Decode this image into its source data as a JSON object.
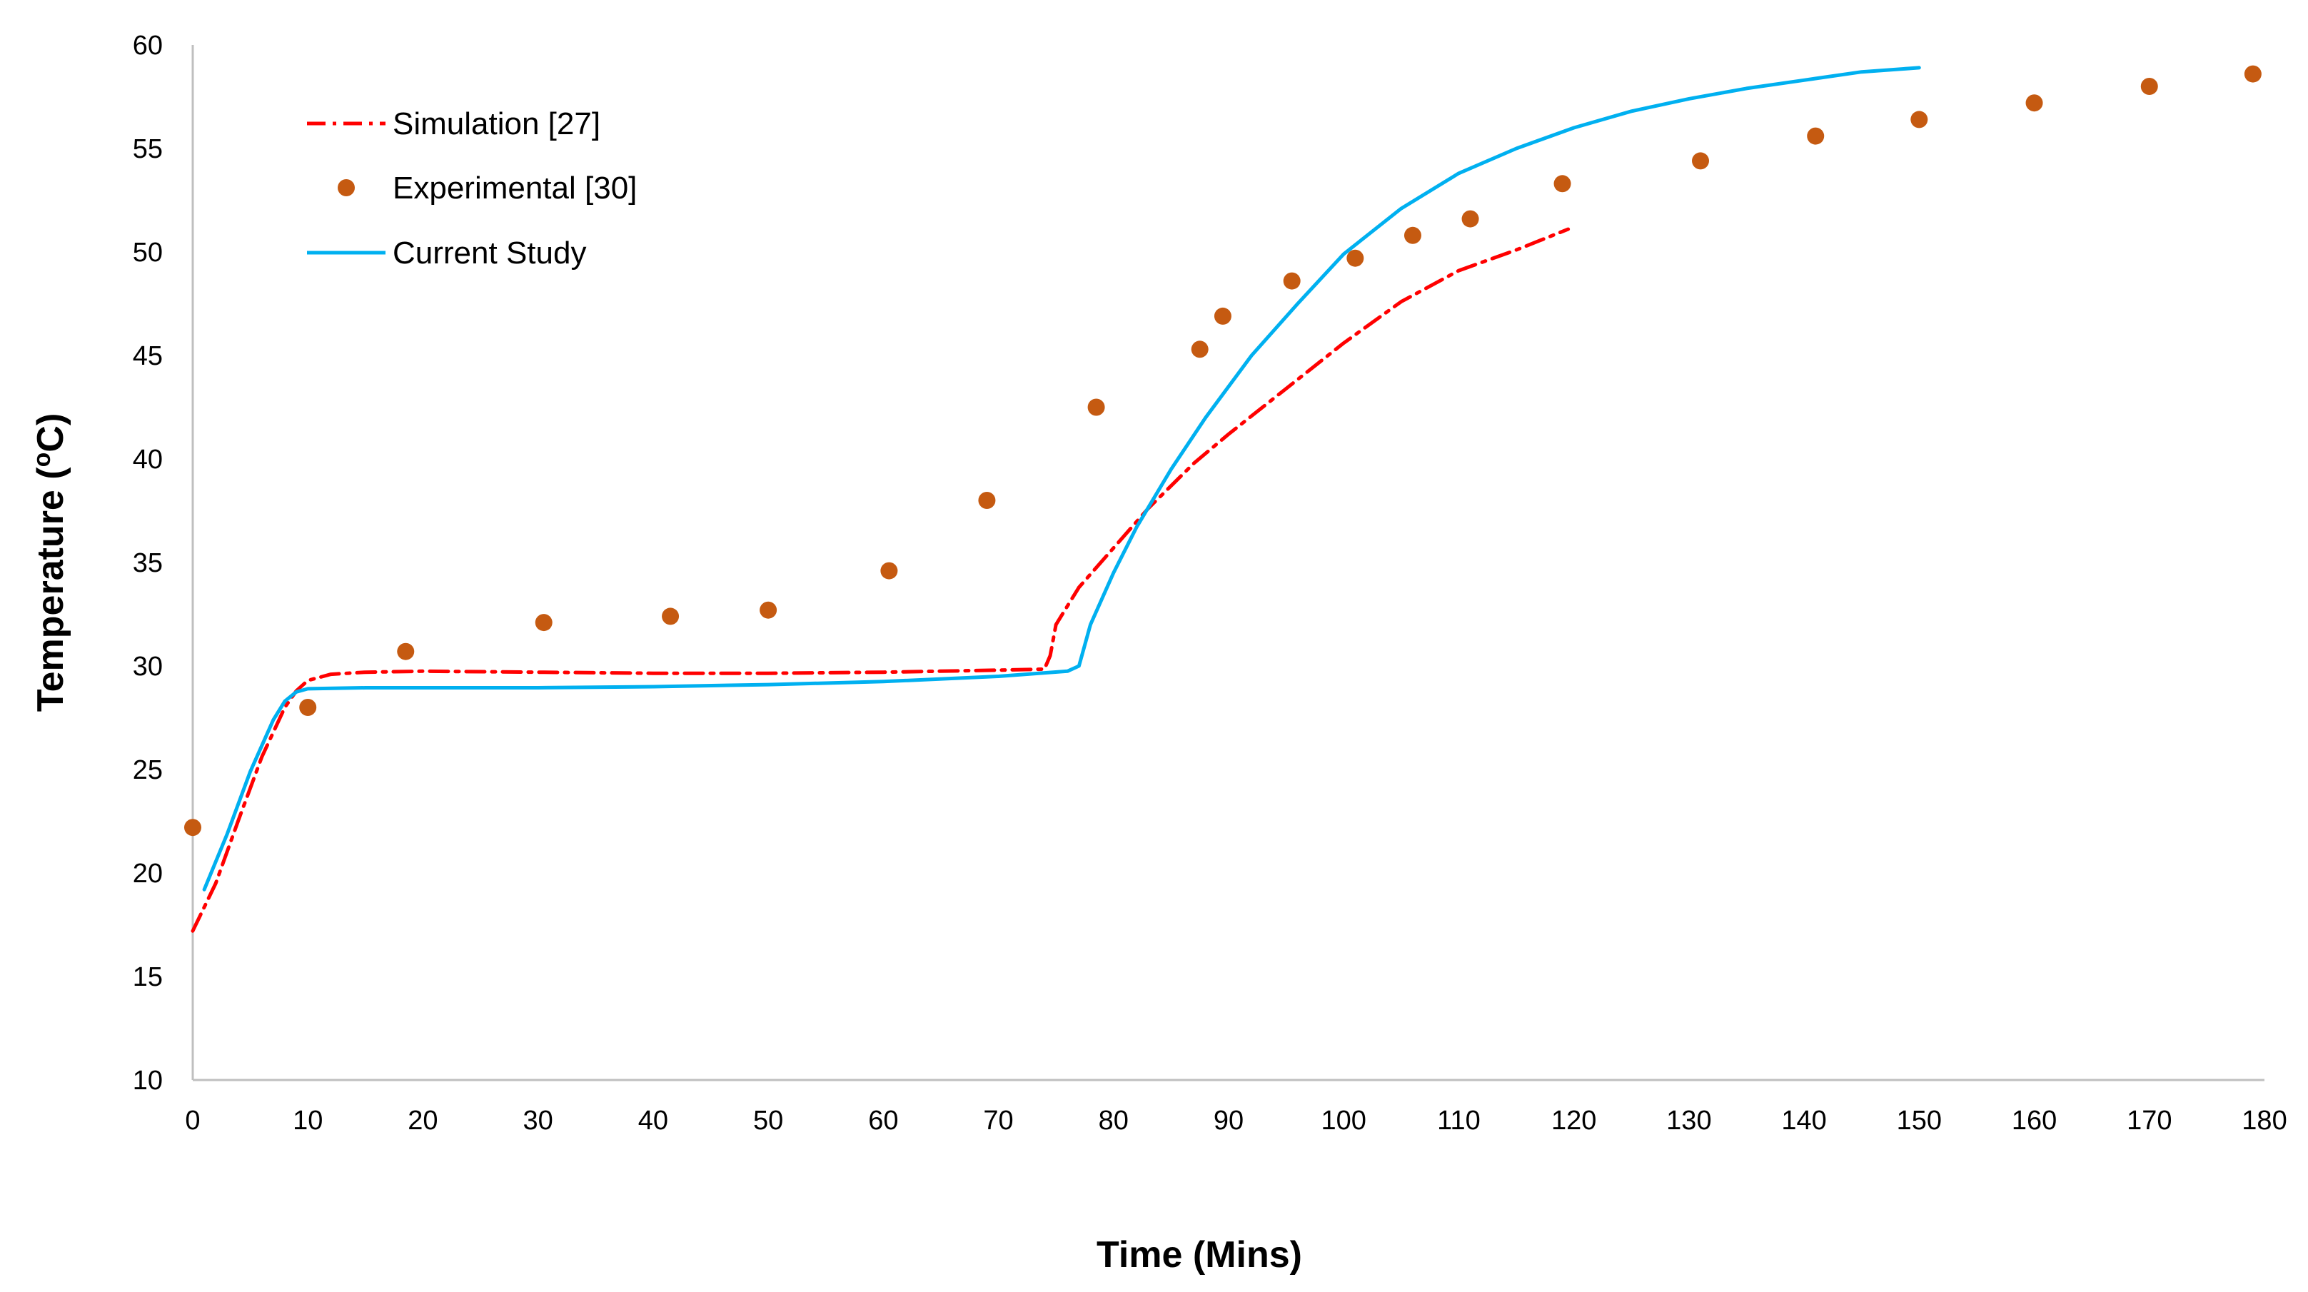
{
  "chart_data": {
    "type": "scatter",
    "title": "",
    "xlabel": "Time (Mins)",
    "ylabel_main": "Temperature (",
    "ylabel_sup": "o",
    "ylabel_end": "C)",
    "xlim": [
      0,
      180
    ],
    "ylim": [
      10,
      60
    ],
    "x_ticks": [
      0,
      10,
      20,
      30,
      40,
      50,
      60,
      70,
      80,
      90,
      100,
      110,
      120,
      130,
      140,
      150,
      160,
      170,
      180
    ],
    "y_ticks": [
      10,
      15,
      20,
      25,
      30,
      35,
      40,
      45,
      50,
      55,
      60
    ],
    "grid": false,
    "legend_position": "top-left",
    "series": [
      {
        "name": "Simulation [27]",
        "kind": "line",
        "style": "dash-dot",
        "color": "#ff0000",
        "points": [
          [
            0,
            17.2
          ],
          [
            2,
            19.5
          ],
          [
            4,
            22.6
          ],
          [
            6,
            25.6
          ],
          [
            8,
            28.0
          ],
          [
            9,
            28.8
          ],
          [
            10,
            29.3
          ],
          [
            12,
            29.6
          ],
          [
            15,
            29.7
          ],
          [
            20,
            29.75
          ],
          [
            30,
            29.7
          ],
          [
            40,
            29.65
          ],
          [
            50,
            29.65
          ],
          [
            60,
            29.7
          ],
          [
            70,
            29.8
          ],
          [
            74,
            29.85
          ],
          [
            74.5,
            30.5
          ],
          [
            75,
            32.0
          ],
          [
            77,
            33.8
          ],
          [
            80,
            35.7
          ],
          [
            83,
            37.6
          ],
          [
            87,
            39.8
          ],
          [
            90,
            41.2
          ],
          [
            95,
            43.4
          ],
          [
            100,
            45.6
          ],
          [
            105,
            47.6
          ],
          [
            110,
            49.1
          ],
          [
            115,
            50.1
          ],
          [
            119.5,
            51.1
          ]
        ]
      },
      {
        "name": "Experimental [30]",
        "kind": "scatter",
        "color": "#c55a11",
        "points": [
          [
            0,
            22.2
          ],
          [
            10,
            28.0
          ],
          [
            18.5,
            30.7
          ],
          [
            30.5,
            32.1
          ],
          [
            41.5,
            32.4
          ],
          [
            50,
            32.7
          ],
          [
            60.5,
            34.6
          ],
          [
            69,
            38.0
          ],
          [
            78.5,
            42.5
          ],
          [
            87.5,
            45.3
          ],
          [
            89.5,
            46.9
          ],
          [
            95.5,
            48.6
          ],
          [
            101,
            49.7
          ],
          [
            106,
            50.8
          ],
          [
            111,
            51.6
          ],
          [
            119,
            53.3
          ],
          [
            131,
            54.4
          ],
          [
            141,
            55.6
          ],
          [
            150,
            56.4
          ],
          [
            160,
            57.2
          ],
          [
            170,
            58.0
          ],
          [
            179,
            58.6
          ]
        ]
      },
      {
        "name": "Current Study",
        "kind": "line",
        "style": "solid",
        "color": "#00b0f0",
        "points": [
          [
            1,
            19.2
          ],
          [
            3,
            21.9
          ],
          [
            5,
            24.9
          ],
          [
            7,
            27.4
          ],
          [
            8,
            28.3
          ],
          [
            9,
            28.75
          ],
          [
            10,
            28.9
          ],
          [
            15,
            28.95
          ],
          [
            20,
            28.95
          ],
          [
            30,
            28.95
          ],
          [
            40,
            29.0
          ],
          [
            50,
            29.1
          ],
          [
            60,
            29.25
          ],
          [
            70,
            29.5
          ],
          [
            76,
            29.75
          ],
          [
            77,
            30.0
          ],
          [
            78,
            32.0
          ],
          [
            80,
            34.5
          ],
          [
            82,
            36.7
          ],
          [
            85,
            39.5
          ],
          [
            88,
            42.0
          ],
          [
            92,
            45.0
          ],
          [
            96,
            47.5
          ],
          [
            100,
            49.9
          ],
          [
            105,
            52.1
          ],
          [
            110,
            53.8
          ],
          [
            115,
            55.0
          ],
          [
            120,
            56.0
          ],
          [
            125,
            56.8
          ],
          [
            130,
            57.4
          ],
          [
            135,
            57.9
          ],
          [
            140,
            58.3
          ],
          [
            145,
            58.7
          ],
          [
            150,
            58.9
          ]
        ]
      }
    ]
  }
}
